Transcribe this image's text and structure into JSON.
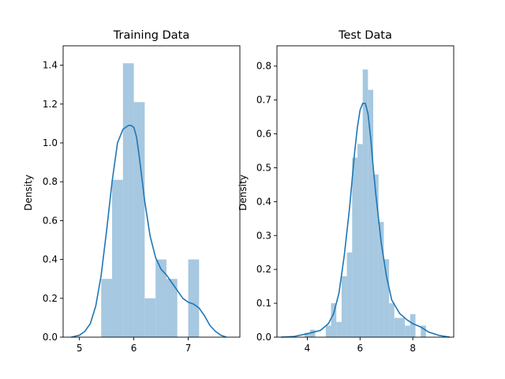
{
  "chart_data": [
    {
      "type": "bar",
      "title": "Training Data",
      "xlabel": "",
      "ylabel": "Density",
      "xlim": [
        4.7,
        7.95
      ],
      "ylim": [
        0,
        1.5
      ],
      "xticks": [
        5,
        6,
        7
      ],
      "yticks": [
        0.0,
        0.2,
        0.4,
        0.6,
        0.8,
        1.0,
        1.2,
        1.4
      ],
      "ytick_labels": [
        "0.0",
        "0.2",
        "0.4",
        "0.6",
        "0.8",
        "1.0",
        "1.2",
        "1.4"
      ],
      "histogram": {
        "bin_edges": [
          5.4,
          5.6,
          5.8,
          6.0,
          6.2,
          6.4,
          6.6,
          6.8,
          7.0,
          7.2
        ],
        "density": [
          0.3,
          0.81,
          1.41,
          1.21,
          0.2,
          0.4,
          0.3,
          0.0,
          0.4
        ]
      },
      "kde": {
        "x": [
          4.85,
          5.0,
          5.1,
          5.2,
          5.3,
          5.4,
          5.5,
          5.6,
          5.7,
          5.8,
          5.9,
          5.95,
          6.0,
          6.05,
          6.1,
          6.2,
          6.3,
          6.4,
          6.5,
          6.6,
          6.7,
          6.8,
          6.9,
          7.0,
          7.1,
          7.2,
          7.3,
          7.4,
          7.5,
          7.6,
          7.7
        ],
        "y": [
          0.0,
          0.01,
          0.03,
          0.07,
          0.16,
          0.32,
          0.55,
          0.8,
          1.0,
          1.07,
          1.09,
          1.09,
          1.08,
          1.03,
          0.93,
          0.7,
          0.52,
          0.41,
          0.35,
          0.32,
          0.28,
          0.24,
          0.2,
          0.18,
          0.17,
          0.15,
          0.11,
          0.06,
          0.03,
          0.01,
          0.0
        ]
      }
    },
    {
      "type": "bar",
      "title": "Test Data",
      "xlabel": "",
      "ylabel": "Density",
      "xlim": [
        2.85,
        9.55
      ],
      "ylim": [
        0,
        0.86
      ],
      "xticks": [
        4,
        6,
        8
      ],
      "yticks": [
        0.0,
        0.1,
        0.2,
        0.3,
        0.4,
        0.5,
        0.6,
        0.7,
        0.8
      ],
      "ytick_labels": [
        "0.0",
        "0.1",
        "0.2",
        "0.3",
        "0.4",
        "0.5",
        "0.6",
        "0.7",
        "0.8"
      ],
      "histogram": {
        "bin_edges": [
          3.9,
          4.1,
          4.3,
          4.5,
          4.7,
          4.9,
          5.1,
          5.3,
          5.5,
          5.7,
          5.9,
          6.1,
          6.3,
          6.5,
          6.7,
          6.9,
          7.1,
          7.3,
          7.5,
          7.7,
          7.9,
          8.1,
          8.3,
          8.5,
          8.7
        ],
        "density": [
          0.013,
          0.022,
          0.0,
          0.0,
          0.034,
          0.1,
          0.045,
          0.18,
          0.25,
          0.53,
          0.57,
          0.79,
          0.73,
          0.48,
          0.34,
          0.23,
          0.1,
          0.057,
          0.057,
          0.034,
          0.068,
          0.0,
          0.034,
          0.0
        ]
      },
      "kde": {
        "x": [
          3.0,
          3.5,
          4.0,
          4.5,
          4.8,
          5.0,
          5.2,
          5.4,
          5.6,
          5.8,
          5.9,
          6.0,
          6.1,
          6.2,
          6.3,
          6.4,
          6.5,
          6.6,
          6.8,
          7.0,
          7.2,
          7.5,
          7.8,
          8.0,
          8.3,
          8.6,
          9.0,
          9.4
        ],
        "y": [
          0.0,
          0.002,
          0.01,
          0.02,
          0.04,
          0.07,
          0.13,
          0.24,
          0.38,
          0.55,
          0.62,
          0.67,
          0.69,
          0.69,
          0.66,
          0.59,
          0.5,
          0.42,
          0.28,
          0.18,
          0.11,
          0.07,
          0.05,
          0.04,
          0.03,
          0.015,
          0.005,
          0.0
        ]
      }
    }
  ],
  "colors": {
    "hist_fill": "#a6c8e0",
    "kde_line": "#1f77b4"
  }
}
